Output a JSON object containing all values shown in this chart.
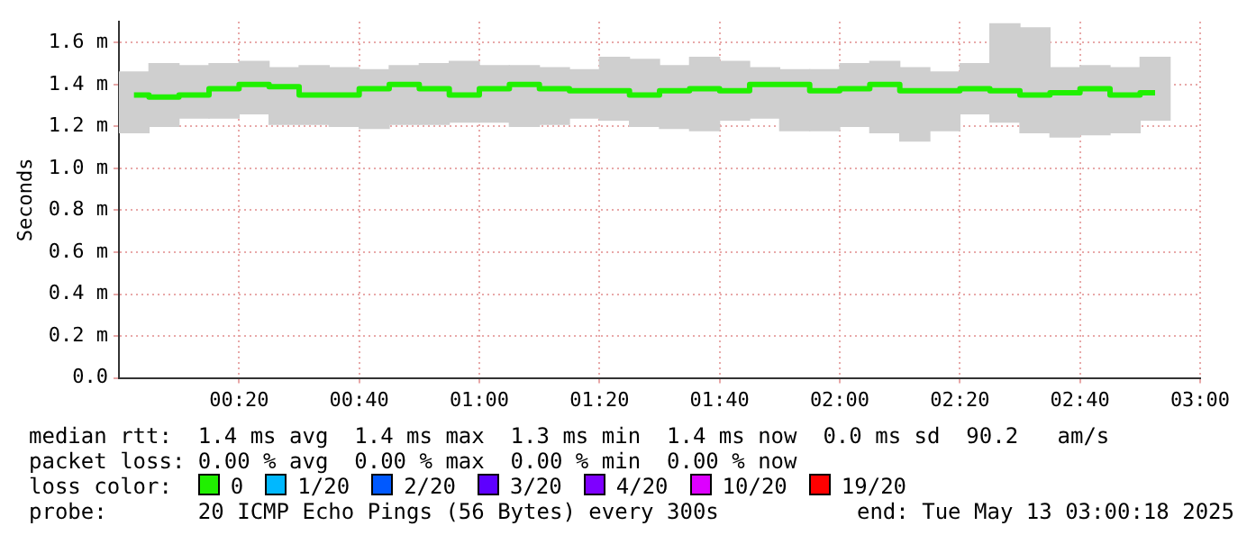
{
  "chart_data": {
    "type": "step",
    "ylabel": "Seconds",
    "legend_title": "loss color:",
    "legend": "bottom",
    "grid": true,
    "x": [
      0.0417,
      0.125,
      0.2083,
      0.2917,
      0.375,
      0.4583,
      0.5417,
      0.625,
      0.7083,
      0.7917,
      0.875,
      0.9583,
      1.0417,
      1.125,
      1.2083,
      1.2917,
      1.375,
      1.4583,
      1.5417,
      1.625,
      1.7083,
      1.7917,
      1.875,
      1.9583,
      2.0417,
      2.125,
      2.2083,
      2.2917,
      2.375,
      2.4583,
      2.5417,
      2.625,
      2.7083,
      2.7917,
      2.875
    ],
    "xlim": [
      0,
      3
    ],
    "xticks": [
      {
        "value": 0.3333,
        "label": "00:20"
      },
      {
        "value": 0.6667,
        "label": "00:40"
      },
      {
        "value": 1,
        "label": "01:00"
      },
      {
        "value": 1.3333,
        "label": "01:20"
      },
      {
        "value": 1.6667,
        "label": "01:40"
      },
      {
        "value": 2,
        "label": "02:00"
      },
      {
        "value": 2.3333,
        "label": "02:20"
      },
      {
        "value": 2.6667,
        "label": "02:40"
      },
      {
        "value": 3,
        "label": "03:00"
      }
    ],
    "ylim": [
      0,
      1.7
    ],
    "yticks": [
      {
        "value": 0,
        "label": "0.0"
      },
      {
        "value": 0.2,
        "label": "0.2 m"
      },
      {
        "value": 0.4,
        "label": "0.4 m"
      },
      {
        "value": 0.6,
        "label": "0.6 m"
      },
      {
        "value": 0.8,
        "label": "0.8 m"
      },
      {
        "value": 1,
        "label": "1.0 m"
      },
      {
        "value": 1.2,
        "label": "1.2 m"
      },
      {
        "value": 1.4,
        "label": "1.4 m"
      },
      {
        "value": 1.6,
        "label": "1.6 m"
      }
    ],
    "series": [
      {
        "type": "bar",
        "color": "#cfcfcf",
        "base": [
          1.17,
          1.2,
          1.24,
          1.24,
          1.26,
          1.21,
          1.21,
          1.2,
          1.19,
          1.21,
          1.21,
          1.22,
          1.22,
          1.2,
          1.21,
          1.24,
          1.23,
          1.2,
          1.19,
          1.18,
          1.23,
          1.24,
          1.18,
          1.18,
          1.2,
          1.17,
          1.13,
          1.18,
          1.26,
          1.22,
          1.17,
          1.15,
          1.16,
          1.17,
          1.23
        ],
        "values": [
          0.29,
          0.3,
          0.25,
          0.26,
          0.25,
          0.27,
          0.28,
          0.28,
          0.28,
          0.28,
          0.29,
          0.29,
          0.27,
          0.29,
          0.27,
          0.23,
          0.3,
          0.32,
          0.3,
          0.35,
          0.28,
          0.24,
          0.29,
          0.29,
          0.3,
          0.34,
          0.35,
          0.28,
          0.24,
          0.47,
          0.5,
          0.33,
          0.33,
          0.31,
          0.3
        ]
      },
      {
        "name": "0",
        "color": "#20f000",
        "values": [
          1.35,
          1.34,
          1.35,
          1.38,
          1.4,
          1.39,
          1.35,
          1.35,
          1.38,
          1.4,
          1.38,
          1.35,
          1.38,
          1.4,
          1.38,
          1.37,
          1.37,
          1.35,
          1.37,
          1.38,
          1.37,
          1.4,
          1.4,
          1.37,
          1.38,
          1.4,
          1.37,
          1.37,
          1.38,
          1.37,
          1.35,
          1.36,
          1.38,
          1.35,
          1.36
        ]
      },
      {
        "type": "step",
        "name": "1/20",
        "color": "#00b8ff",
        "values": [
          null,
          null,
          null,
          null,
          null,
          null,
          null,
          null,
          null,
          null,
          null,
          null,
          null,
          null,
          null,
          null,
          null,
          null,
          null,
          null,
          null,
          null,
          null,
          null,
          null,
          null,
          null,
          null,
          null,
          null,
          null,
          null,
          null,
          null,
          null
        ]
      },
      {
        "type": "step",
        "name": "2/20",
        "color": "#0059ff",
        "values": [
          null,
          null,
          null,
          null,
          null,
          null,
          null,
          null,
          null,
          null,
          null,
          null,
          null,
          null,
          null,
          null,
          null,
          null,
          null,
          null,
          null,
          null,
          null,
          null,
          null,
          null,
          null,
          null,
          null,
          null,
          null,
          null,
          null,
          null,
          null
        ]
      },
      {
        "type": "step",
        "name": "3/20",
        "color": "#5e00ff",
        "values": [
          null,
          null,
          null,
          null,
          null,
          null,
          null,
          null,
          null,
          null,
          null,
          null,
          null,
          null,
          null,
          null,
          null,
          null,
          null,
          null,
          null,
          null,
          null,
          null,
          null,
          null,
          null,
          null,
          null,
          null,
          null,
          null,
          null,
          null,
          null
        ]
      },
      {
        "type": "step",
        "name": "4/20",
        "color": "#7e00ff",
        "values": [
          null,
          null,
          null,
          null,
          null,
          null,
          null,
          null,
          null,
          null,
          null,
          null,
          null,
          null,
          null,
          null,
          null,
          null,
          null,
          null,
          null,
          null,
          null,
          null,
          null,
          null,
          null,
          null,
          null,
          null,
          null,
          null,
          null,
          null,
          null
        ]
      },
      {
        "type": "step",
        "name": "10/20",
        "color": "#dd00ff",
        "values": [
          null,
          null,
          null,
          null,
          null,
          null,
          null,
          null,
          null,
          null,
          null,
          null,
          null,
          null,
          null,
          null,
          null,
          null,
          null,
          null,
          null,
          null,
          null,
          null,
          null,
          null,
          null,
          null,
          null,
          null,
          null,
          null,
          null,
          null,
          null
        ]
      },
      {
        "type": "step",
        "name": "19/20",
        "color": "#ff0000",
        "values": [
          null,
          null,
          null,
          null,
          null,
          null,
          null,
          null,
          null,
          null,
          null,
          null,
          null,
          null,
          null,
          null,
          null,
          null,
          null,
          null,
          null,
          null,
          null,
          null,
          null,
          null,
          null,
          null,
          null,
          null,
          null,
          null,
          null,
          null,
          null
        ]
      }
    ],
    "annotations": [
      "median rtt:  1.4 ms avg  1.4 ms max  1.3 ms min  1.4 ms now  0.0 ms sd  90.2   am/s",
      "packet loss: 0.00 % avg  0.00 % max  0.00 % min  0.00 % now",
      "probe:       20 ICMP Echo Pings (56 Bytes) every 300s",
      "end: Tue May 13 03:00:18 2025"
    ]
  }
}
